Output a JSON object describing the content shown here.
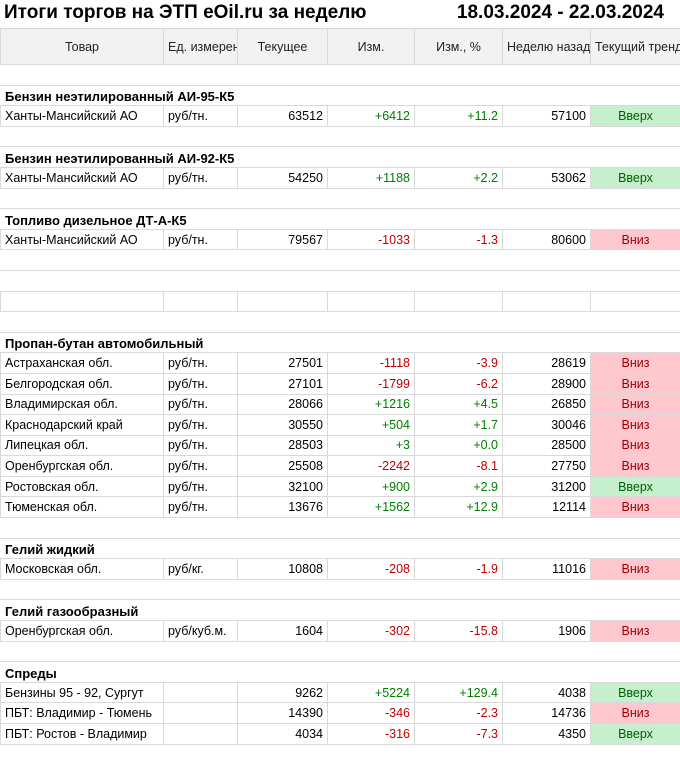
{
  "title": "Итоги торгов на ЭТП eOil.ru за неделю",
  "period": "18.03.2024 - 22.03.2024",
  "headers": {
    "product": "Товар",
    "unit": "Ед. измерения",
    "current": "Текущее",
    "change": "Изм.",
    "change_pct": "Изм., %",
    "week_ago": "Неделю назад",
    "trend": "Текущий тренд"
  },
  "rows": [
    {
      "kind": "gap"
    },
    {
      "kind": "section",
      "label": "Бензин неэтилированный АИ-95-К5"
    },
    {
      "kind": "data",
      "name": "Ханты-Мансийский АО",
      "unit": "руб/тн.",
      "current": "63512",
      "change": "+6412",
      "change_pct": "+11.2",
      "week_ago": "57100",
      "trend": "Вверх",
      "dir": "up"
    },
    {
      "kind": "gap"
    },
    {
      "kind": "section",
      "label": "Бензин неэтилированный АИ-92-К5"
    },
    {
      "kind": "data",
      "name": "Ханты-Мансийский АО",
      "unit": "руб/тн.",
      "current": "54250",
      "change": "+1188",
      "change_pct": "+2.2",
      "week_ago": "53062",
      "trend": "Вверх",
      "dir": "up"
    },
    {
      "kind": "gap"
    },
    {
      "kind": "section",
      "label": "Топливо дизельное ДТ-А-К5"
    },
    {
      "kind": "data",
      "name": "Ханты-Мансийский АО",
      "unit": "руб/тн.",
      "current": "79567",
      "change": "-1033",
      "change_pct": "-1.3",
      "week_ago": "80600",
      "trend": "Вниз",
      "dir": "down"
    },
    {
      "kind": "gap"
    },
    {
      "kind": "gap"
    },
    {
      "kind": "blank"
    },
    {
      "kind": "gap"
    },
    {
      "kind": "section",
      "label": "Пропан-бутан автомобильный"
    },
    {
      "kind": "data",
      "name": "Астраханская обл.",
      "unit": "руб/тн.",
      "current": "27501",
      "change": "-1118",
      "change_pct": "-3.9",
      "week_ago": "28619",
      "trend": "Вниз",
      "dir": "down"
    },
    {
      "kind": "data",
      "name": "Белгородская обл.",
      "unit": "руб/тн.",
      "current": "27101",
      "change": "-1799",
      "change_pct": "-6.2",
      "week_ago": "28900",
      "trend": "Вниз",
      "dir": "down"
    },
    {
      "kind": "data",
      "name": "Владимирская обл.",
      "unit": "руб/тн.",
      "current": "28066",
      "change": "+1216",
      "change_pct": "+4.5",
      "week_ago": "26850",
      "trend": "Вниз",
      "dir": "down"
    },
    {
      "kind": "data",
      "name": "Краснодарский край",
      "unit": "руб/тн.",
      "current": "30550",
      "change": "+504",
      "change_pct": "+1.7",
      "week_ago": "30046",
      "trend": "Вниз",
      "dir": "down"
    },
    {
      "kind": "data",
      "name": "Липецкая обл.",
      "unit": "руб/тн.",
      "current": "28503",
      "change": "+3",
      "change_pct": "+0.0",
      "week_ago": "28500",
      "trend": "Вниз",
      "dir": "down"
    },
    {
      "kind": "data",
      "name": "Оренбургская обл.",
      "unit": "руб/тн.",
      "current": "25508",
      "change": "-2242",
      "change_pct": "-8.1",
      "week_ago": "27750",
      "trend": "Вниз",
      "dir": "down"
    },
    {
      "kind": "data",
      "name": "Ростовская обл.",
      "unit": "руб/тн.",
      "current": "32100",
      "change": "+900",
      "change_pct": "+2.9",
      "week_ago": "31200",
      "trend": "Вверх",
      "dir": "up"
    },
    {
      "kind": "data",
      "name": "Тюменская обл.",
      "unit": "руб/тн.",
      "current": "13676",
      "change": "+1562",
      "change_pct": "+12.9",
      "week_ago": "12114",
      "trend": "Вниз",
      "dir": "down"
    },
    {
      "kind": "gap"
    },
    {
      "kind": "section",
      "label": "Гелий жидкий"
    },
    {
      "kind": "data",
      "name": "Московская обл.",
      "unit": "руб/кг.",
      "current": "10808",
      "change": "-208",
      "change_pct": "-1.9",
      "week_ago": "11016",
      "trend": "Вниз",
      "dir": "down"
    },
    {
      "kind": "gap"
    },
    {
      "kind": "section",
      "label": "Гелий газообразный"
    },
    {
      "kind": "data",
      "name": "Оренбургская обл.",
      "unit": "руб/куб.м.",
      "current": "1604",
      "change": "-302",
      "change_pct": "-15.8",
      "week_ago": "1906",
      "trend": "Вниз",
      "dir": "down"
    },
    {
      "kind": "gap"
    },
    {
      "kind": "section",
      "label": "Спреды"
    },
    {
      "kind": "data",
      "name": "Бензины 95 - 92, Сургут",
      "unit": "",
      "current": "9262",
      "change": "+5224",
      "change_pct": "+129.4",
      "week_ago": "4038",
      "trend": "Вверх",
      "dir": "up"
    },
    {
      "kind": "data",
      "name": "ПБТ: Владимир - Тюмень",
      "unit": "",
      "current": "14390",
      "change": "-346",
      "change_pct": "-2.3",
      "week_ago": "14736",
      "trend": "Вниз",
      "dir": "down"
    },
    {
      "kind": "data",
      "name": "ПБТ: Ростов - Владимир",
      "unit": "",
      "current": "4034",
      "change": "-316",
      "change_pct": "-7.3",
      "week_ago": "4350",
      "trend": "Вверх",
      "dir": "up"
    }
  ]
}
